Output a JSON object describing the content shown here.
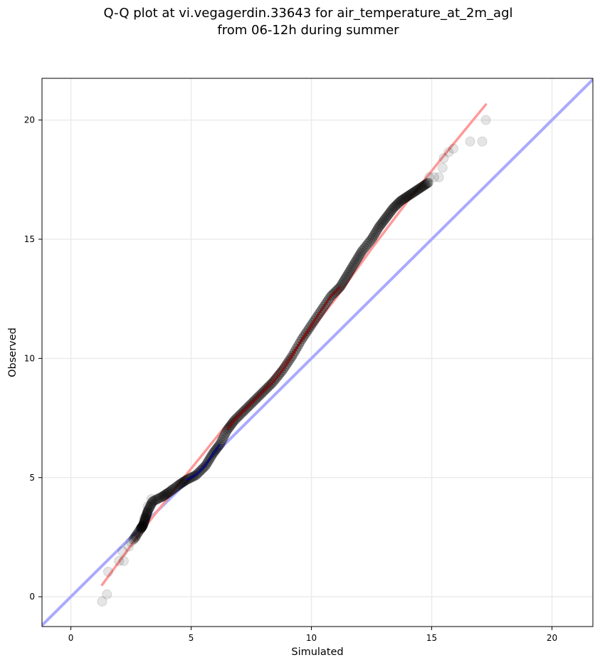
{
  "chart_data": {
    "type": "scatter",
    "title_line1": "Q-Q plot at vi.vegagerdin.33643 for air_temperature_at_2m_agl",
    "title_line2": "from 06-12h during summer",
    "xlabel": "Simulated",
    "ylabel": "Observed",
    "xlim": [
      -1.2,
      21.7
    ],
    "ylim": [
      -1.25,
      21.75
    ],
    "xticks": [
      0,
      5,
      10,
      15,
      20
    ],
    "yticks": [
      0,
      5,
      10,
      15,
      20
    ],
    "grid": true,
    "reference_line": {
      "name": "1:1",
      "color": "#aaaaff",
      "points": [
        [
          -1.2,
          -1.2
        ],
        [
          21.7,
          21.7
        ]
      ]
    },
    "fit_line": {
      "color": "#ff9999",
      "points": [
        [
          1.3,
          0.5
        ],
        [
          2.9,
          2.7
        ],
        [
          4.7,
          5.0
        ],
        [
          6.3,
          7.0
        ],
        [
          8.0,
          8.7
        ],
        [
          9.5,
          10.6
        ],
        [
          11.0,
          12.5
        ],
        [
          12.5,
          14.6
        ],
        [
          14.0,
          16.6
        ],
        [
          15.5,
          18.5
        ],
        [
          17.25,
          20.65
        ]
      ]
    },
    "central_color_segments": [
      {
        "color": "#00008b",
        "x_range": [
          4.7,
          6.3
        ]
      },
      {
        "color": "#8b0000",
        "x_range": [
          6.3,
          11.2
        ]
      }
    ],
    "points_color": "#000000",
    "scatter_outliers": [
      [
        1.3,
        -0.2
      ],
      [
        1.5,
        0.1
      ],
      [
        1.55,
        1.05
      ],
      [
        2.0,
        1.5
      ],
      [
        2.15,
        1.9
      ],
      [
        2.2,
        1.5
      ],
      [
        2.4,
        2.1
      ],
      [
        2.5,
        2.3
      ],
      [
        2.7,
        2.5
      ],
      [
        2.95,
        2.9
      ],
      [
        3.05,
        3.3
      ],
      [
        3.2,
        3.8
      ],
      [
        3.35,
        4.1
      ],
      [
        3.9,
        4.2
      ],
      [
        4.2,
        4.5
      ],
      [
        14.9,
        17.6
      ],
      [
        15.1,
        17.6
      ],
      [
        15.3,
        17.6
      ],
      [
        15.45,
        18.0
      ],
      [
        15.5,
        18.4
      ],
      [
        15.7,
        18.65
      ],
      [
        15.9,
        18.8
      ],
      [
        16.6,
        19.1
      ],
      [
        17.1,
        19.1
      ],
      [
        17.25,
        20.0
      ]
    ],
    "quantile_curve": [
      [
        2.6,
        2.4
      ],
      [
        2.9,
        2.85
      ],
      [
        3.0,
        3.0
      ],
      [
        3.1,
        3.3
      ],
      [
        3.2,
        3.6
      ],
      [
        3.4,
        4.0
      ],
      [
        3.8,
        4.2
      ],
      [
        4.1,
        4.4
      ],
      [
        4.5,
        4.7
      ],
      [
        4.8,
        4.9
      ],
      [
        5.2,
        5.1
      ],
      [
        5.6,
        5.5
      ],
      [
        5.9,
        6.0
      ],
      [
        6.2,
        6.4
      ],
      [
        6.5,
        7.0
      ],
      [
        6.8,
        7.4
      ],
      [
        7.2,
        7.8
      ],
      [
        7.6,
        8.2
      ],
      [
        8.0,
        8.6
      ],
      [
        8.4,
        9.0
      ],
      [
        8.8,
        9.5
      ],
      [
        9.2,
        10.1
      ],
      [
        9.6,
        10.8
      ],
      [
        10.0,
        11.4
      ],
      [
        10.4,
        12.0
      ],
      [
        10.8,
        12.6
      ],
      [
        11.2,
        13.0
      ],
      [
        11.5,
        13.5
      ],
      [
        11.8,
        14.0
      ],
      [
        12.1,
        14.5
      ],
      [
        12.5,
        15.0
      ],
      [
        12.8,
        15.5
      ],
      [
        13.1,
        15.9
      ],
      [
        13.4,
        16.3
      ],
      [
        13.7,
        16.6
      ],
      [
        14.0,
        16.8
      ],
      [
        14.3,
        17.0
      ],
      [
        14.6,
        17.2
      ],
      [
        14.9,
        17.4
      ]
    ]
  }
}
